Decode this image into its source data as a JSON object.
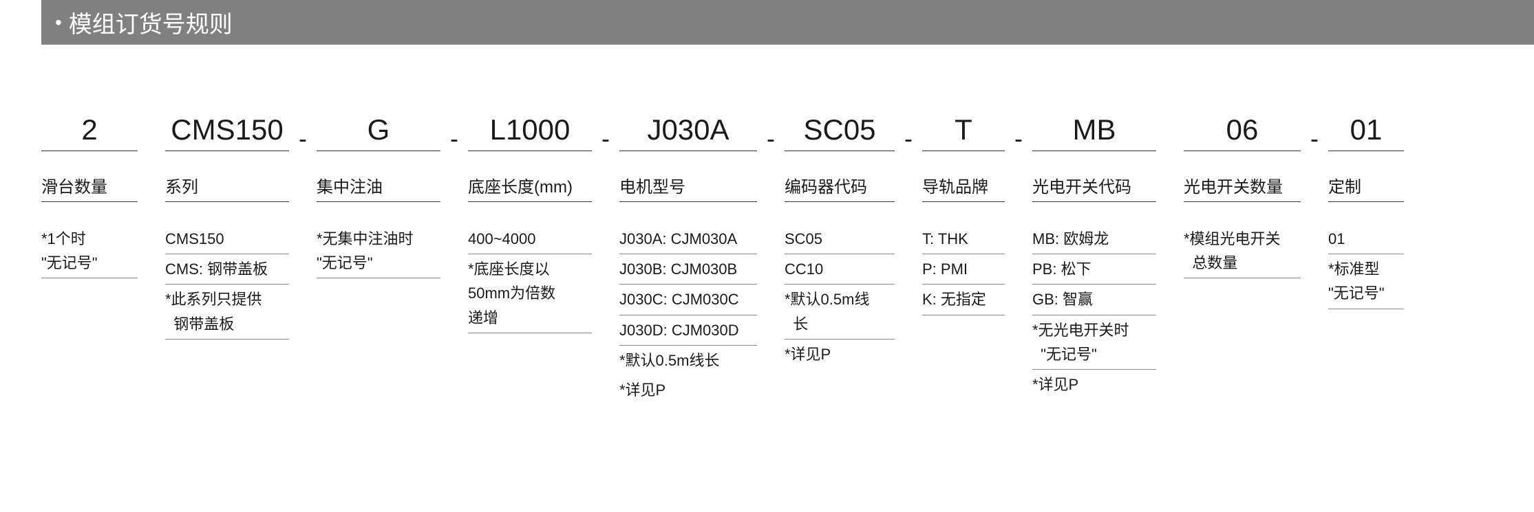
{
  "header": {
    "title": "模组订货号规则"
  },
  "columns": [
    {
      "code": "2",
      "label": "滑台数量",
      "details": [
        {
          "type": "multi",
          "text": "*1个时<br>\"无记号\""
        }
      ]
    },
    {
      "code": "CMS150",
      "label": "系列",
      "details": [
        {
          "type": "line",
          "text": "CMS150"
        },
        {
          "type": "line",
          "text": "CMS: 钢带盖板"
        },
        {
          "type": "multi",
          "text": "*此系列只提供<br>&nbsp;&nbsp;钢带盖板"
        }
      ]
    },
    {
      "code": "G",
      "label": "集中注油",
      "details": [
        {
          "type": "multi",
          "text": "*无集中注油时<br>\"无记号\""
        }
      ]
    },
    {
      "code": "L1000",
      "label": "底座长度(mm)",
      "details": [
        {
          "type": "line",
          "text": "400~4000"
        },
        {
          "type": "multi",
          "text": "*底座长度以<br>50mm为倍数<br>递增"
        }
      ]
    },
    {
      "code": "J030A",
      "label": "电机型号",
      "details": [
        {
          "type": "line",
          "text": "J030A: CJM030A"
        },
        {
          "type": "line",
          "text": "J030B: CJM030B"
        },
        {
          "type": "line",
          "text": "J030C: CJM030C"
        },
        {
          "type": "line",
          "text": "J030D: CJM030D"
        },
        {
          "type": "note",
          "text": "*默认0.5m线长"
        },
        {
          "type": "note",
          "text": "*详见P"
        }
      ]
    },
    {
      "code": "SC05",
      "label": "编码器代码",
      "details": [
        {
          "type": "line",
          "text": "SC05"
        },
        {
          "type": "line",
          "text": "CC10"
        },
        {
          "type": "multi",
          "text": "*默认0.5m线<br>&nbsp;&nbsp;长"
        },
        {
          "type": "note",
          "text": "*详见P"
        }
      ]
    },
    {
      "code": "T",
      "label": "导轨品牌",
      "details": [
        {
          "type": "line",
          "text": "T: THK"
        },
        {
          "type": "line",
          "text": "P: PMI"
        },
        {
          "type": "line",
          "text": "K: 无指定"
        }
      ]
    },
    {
      "code": "MB",
      "label": "光电开关代码",
      "details": [
        {
          "type": "line",
          "text": "MB: 欧姆龙"
        },
        {
          "type": "line",
          "text": "PB: 松下"
        },
        {
          "type": "line",
          "text": "GB: 智赢"
        },
        {
          "type": "multi",
          "text": "*无光电开关时<br>&nbsp;&nbsp;\"无记号\""
        },
        {
          "type": "note",
          "text": "*详见P"
        }
      ]
    },
    {
      "code": "06",
      "label": "光电开关数量",
      "details": [
        {
          "type": "multi",
          "text": "*模组光电开关<br>&nbsp;&nbsp;总数量"
        }
      ]
    },
    {
      "code": "01",
      "label": "定制",
      "details": [
        {
          "type": "line",
          "text": "01"
        },
        {
          "type": "multi",
          "text": "*标准型<br>\"无记号\""
        }
      ]
    }
  ],
  "separators": [
    false,
    false,
    true,
    true,
    true,
    true,
    true,
    true,
    false,
    true
  ],
  "layout": {
    "header_bg": "#808080",
    "header_color": "#ffffff",
    "text_color": "#1a1a1a",
    "border_color": "#333333",
    "detail_border_color": "#888888"
  }
}
